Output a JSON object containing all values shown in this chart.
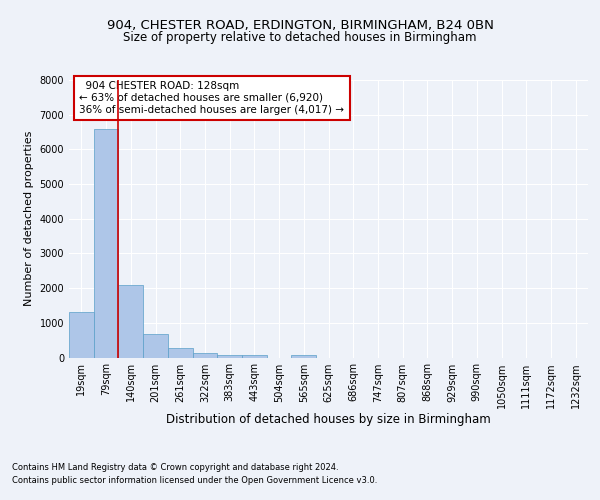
{
  "title_line1": "904, CHESTER ROAD, ERDINGTON, BIRMINGHAM, B24 0BN",
  "title_line2": "Size of property relative to detached houses in Birmingham",
  "xlabel": "Distribution of detached houses by size in Birmingham",
  "ylabel": "Number of detached properties",
  "footnote1": "Contains HM Land Registry data © Crown copyright and database right 2024.",
  "footnote2": "Contains public sector information licensed under the Open Government Licence v3.0.",
  "bin_labels": [
    "19sqm",
    "79sqm",
    "140sqm",
    "201sqm",
    "261sqm",
    "322sqm",
    "383sqm",
    "443sqm",
    "504sqm",
    "565sqm",
    "625sqm",
    "686sqm",
    "747sqm",
    "807sqm",
    "868sqm",
    "929sqm",
    "990sqm",
    "1050sqm",
    "1111sqm",
    "1172sqm",
    "1232sqm"
  ],
  "bar_values": [
    1300,
    6600,
    2080,
    680,
    280,
    120,
    80,
    60,
    0,
    60,
    0,
    0,
    0,
    0,
    0,
    0,
    0,
    0,
    0,
    0,
    0
  ],
  "bar_color": "#aec6e8",
  "bar_edge_color": "#5a9fc8",
  "property_label": "904 CHESTER ROAD: 128sqm",
  "pct_smaller": 63,
  "count_smaller": 6920,
  "pct_larger_semi": 36,
  "count_larger_semi": 4017,
  "vline_x": 1.5,
  "ylim": [
    0,
    8000
  ],
  "yticks": [
    0,
    1000,
    2000,
    3000,
    4000,
    5000,
    6000,
    7000,
    8000
  ],
  "background_color": "#eef2f9",
  "grid_color": "#ffffff",
  "annotation_box_color": "#ffffff",
  "annotation_box_edge": "#cc0000",
  "vline_color": "#cc0000",
  "title_fontsize": 9.5,
  "subtitle_fontsize": 8.5,
  "ylabel_fontsize": 8,
  "xlabel_fontsize": 8.5,
  "tick_fontsize": 7,
  "annot_fontsize": 7.5,
  "footnote_fontsize": 6
}
